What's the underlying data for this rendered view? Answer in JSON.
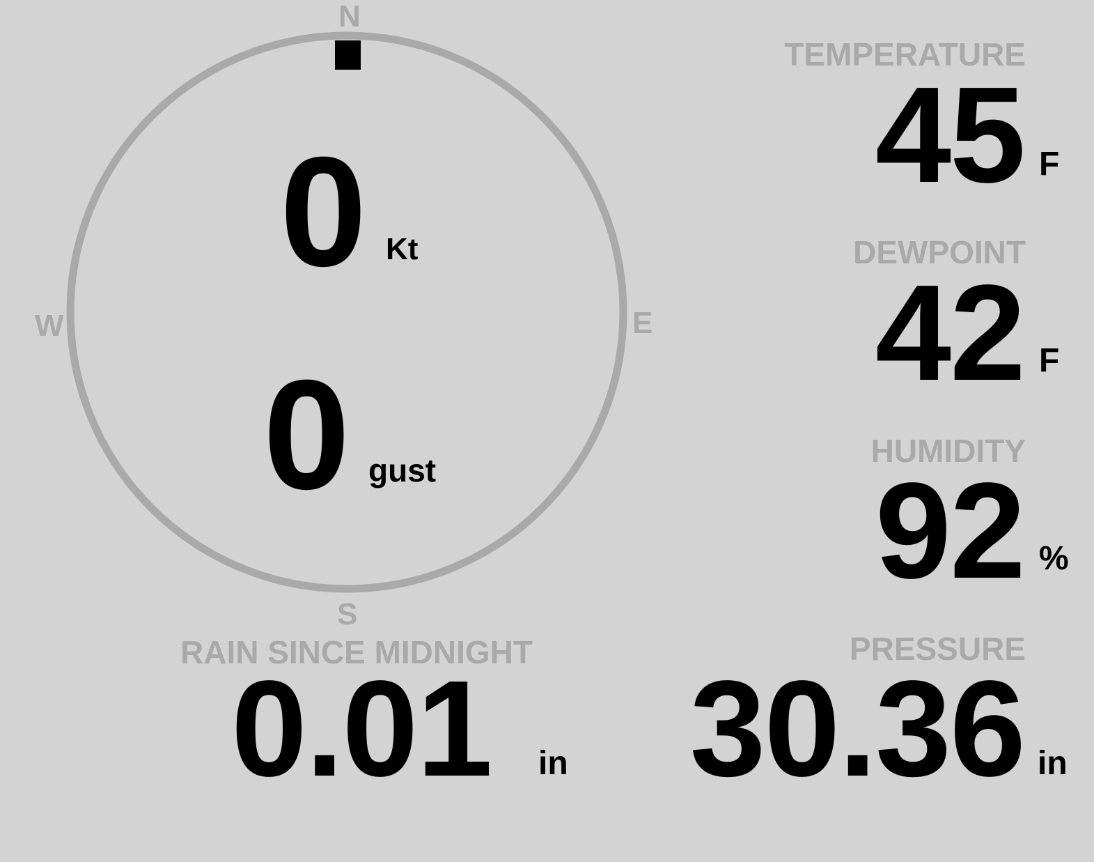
{
  "compass": {
    "north": "N",
    "south": "S",
    "east": "E",
    "west": "W",
    "direction_deg": 0,
    "ring_color": "#a9a9a9",
    "pointer_color": "#000000"
  },
  "wind": {
    "speed": "0",
    "speed_unit": "Kt",
    "gust": "0",
    "gust_unit": "gust"
  },
  "temperature": {
    "label": "TEMPERATURE",
    "value": "45",
    "unit": "F"
  },
  "dewpoint": {
    "label": "DEWPOINT",
    "value": "42",
    "unit": "F"
  },
  "humidity": {
    "label": "HUMIDITY",
    "value": "92",
    "unit": "%"
  },
  "rain": {
    "label": "RAIN SINCE MIDNIGHT",
    "value": "0.01",
    "unit": "in"
  },
  "pressure": {
    "label": "PRESSURE",
    "value": "30.36",
    "unit": "in"
  },
  "colors": {
    "background": "#d3d3d3",
    "label": "#a9a9a9",
    "value": "#000000"
  }
}
